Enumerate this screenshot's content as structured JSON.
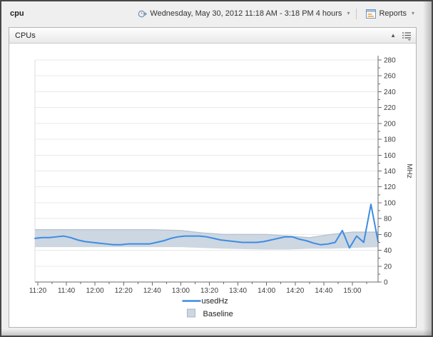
{
  "header": {
    "title": "cpu",
    "time_range": "Wednesday, May 30, 2012 11:18 AM - 3:18 PM 4 hours",
    "reports_label": "Reports"
  },
  "icons": {
    "dropdown": "▾",
    "collapse": "▲"
  },
  "panel": {
    "title": "CPUs"
  },
  "chart_data": {
    "type": "line",
    "title": "",
    "xlabel": "",
    "ylabel": "MHz",
    "ylim": [
      0,
      280
    ],
    "y_major_step": 20,
    "y_minor_step": 10,
    "y_tick_labels": [
      "0",
      "20",
      "40",
      "60",
      "80",
      "100",
      "120",
      "140",
      "160",
      "180",
      "200",
      "220",
      "240",
      "260",
      "280"
    ],
    "x_domain_minutes": [
      678,
      918
    ],
    "x_major_tick_start_min": 680,
    "x_major_tick_step_min": 20,
    "x_minor_tick_step_min": 10,
    "x_tick_labels": [
      "11:20",
      "11:40",
      "12:00",
      "12:20",
      "12:40",
      "13:00",
      "13:20",
      "13:40",
      "14:00",
      "14:20",
      "14:40",
      "15:00"
    ],
    "grid": true,
    "legend_position": "bottom",
    "colors": {
      "line": "#3d8ce2",
      "band_fill": "#ccd7e2",
      "band_edge": "#b7c4d3",
      "grid": "#e9e9e9",
      "axis": "#6b6b6b",
      "tick_text": "#3c3c3c"
    },
    "series": [
      {
        "name": "usedHz",
        "type": "line",
        "x": [
          678,
          683,
          688,
          693,
          698,
          703,
          708,
          713,
          718,
          723,
          728,
          733,
          738,
          743,
          748,
          753,
          758,
          763,
          768,
          773,
          778,
          783,
          788,
          793,
          798,
          803,
          808,
          813,
          818,
          823,
          828,
          833,
          838,
          843,
          848,
          853,
          858,
          863,
          868,
          873,
          878,
          883,
          888,
          893,
          898,
          903,
          908,
          913,
          918
        ],
        "values": [
          55,
          56,
          56,
          57,
          58,
          56,
          53,
          51,
          50,
          49,
          48,
          47,
          47,
          48,
          48,
          48,
          48,
          50,
          52,
          55,
          57,
          58,
          58,
          58,
          57,
          55,
          53,
          52,
          51,
          50,
          50,
          50,
          51,
          53,
          55,
          57,
          57,
          54,
          52,
          49,
          47,
          48,
          50,
          65,
          43,
          58,
          50,
          98,
          51
        ]
      },
      {
        "name": "Baseline",
        "type": "band",
        "x": [
          678,
          760,
          780,
          795,
          810,
          840,
          855,
          870,
          885,
          900,
          918
        ],
        "hi": [
          66,
          66,
          65,
          62,
          60,
          60,
          58,
          56,
          60,
          63,
          63
        ],
        "lo": [
          44,
          44,
          44,
          43,
          42,
          41,
          41,
          42,
          42,
          43,
          44
        ]
      }
    ]
  }
}
